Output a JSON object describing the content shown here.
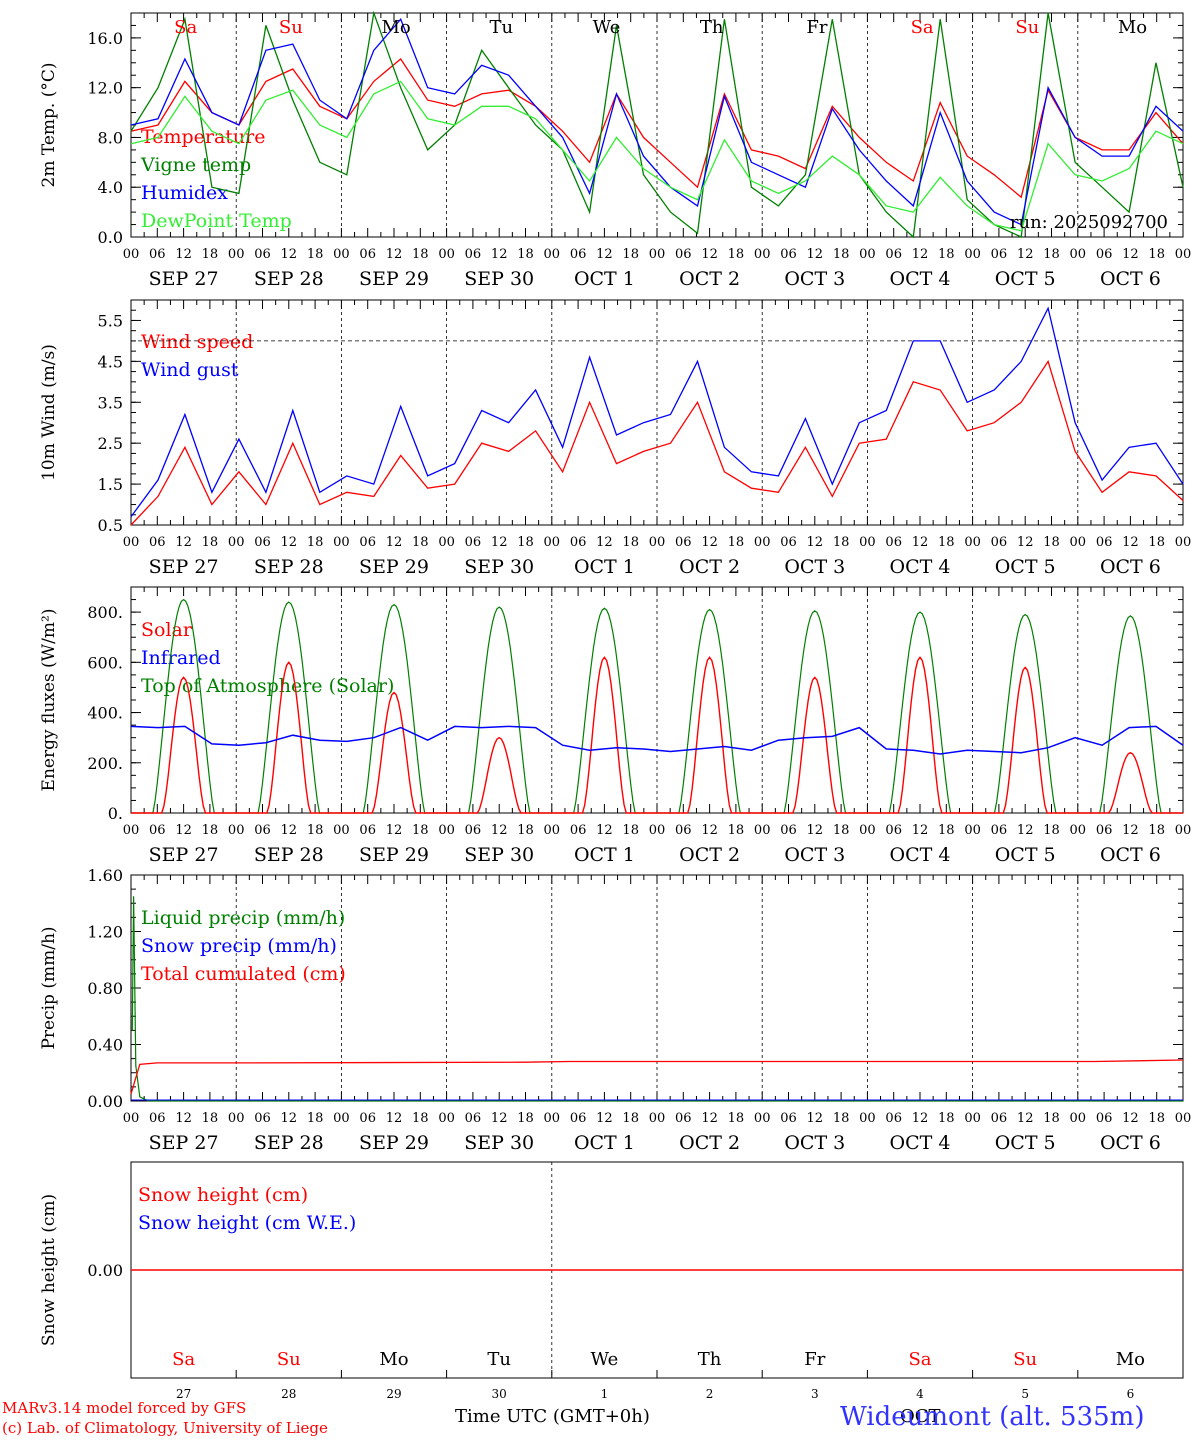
{
  "chart_data": [
    {
      "type": "line",
      "ylabel": "2m Temp. (°C)",
      "ylim": [
        0,
        18
      ],
      "yticks": [
        "0.0",
        "4.0",
        "8.0",
        "12.0",
        "16.0"
      ],
      "ytick_values": [
        0,
        4,
        8,
        12,
        16
      ],
      "run_label": "run: 2025092700",
      "legend": [
        {
          "label": "Temperature",
          "color": "#ff0000"
        },
        {
          "label": "Vigne temp",
          "color": "#008000"
        },
        {
          "label": "Humidex",
          "color": "#0000ff"
        },
        {
          "label": "DewPoint Temp",
          "color": "#33ee33"
        }
      ],
      "series": [
        {
          "name": "Temperature",
          "color": "#ff0000",
          "values": [
            8.5,
            9.0,
            12.5,
            10.0,
            9.0,
            12.5,
            13.5,
            10.5,
            9.5,
            12.5,
            14.3,
            11.0,
            10.5,
            11.5,
            11.8,
            10.5,
            8.5,
            6.0,
            11.5,
            8.0,
            6.0,
            4.0,
            11.5,
            7.0,
            6.5,
            5.5,
            10.5,
            8.0,
            6.0,
            4.5,
            10.8,
            6.5,
            5.0,
            3.2,
            11.8,
            8.0,
            7.0,
            7.0,
            10.0,
            7.5
          ]
        },
        {
          "name": "Vigne temp",
          "color": "#008000",
          "values": [
            8.5,
            12.0,
            17.5,
            4.0,
            3.5,
            17.0,
            11.0,
            6.0,
            5.0,
            18.0,
            12.0,
            7.0,
            9.0,
            15.0,
            12.0,
            9.0,
            7.0,
            2.0,
            17.0,
            5.0,
            2.0,
            0.3,
            17.5,
            4.0,
            2.5,
            5.0,
            17.5,
            5.0,
            2.0,
            0.0,
            17.5,
            3.0,
            1.0,
            0.0,
            18.0,
            6.0,
            4.0,
            2.0,
            14.0,
            4.0
          ]
        },
        {
          "name": "Humidex",
          "color": "#0000ff",
          "values": [
            9.0,
            9.5,
            14.3,
            10.0,
            9.0,
            15.0,
            15.5,
            11.0,
            9.5,
            15.0,
            17.5,
            12.0,
            11.5,
            13.8,
            13.0,
            10.5,
            8.0,
            3.5,
            11.5,
            6.5,
            4.0,
            2.5,
            11.3,
            6.0,
            5.0,
            4.0,
            10.3,
            7.0,
            4.5,
            2.5,
            10.0,
            4.5,
            2.0,
            1.0,
            12.0,
            8.0,
            6.5,
            6.5,
            10.5,
            8.5
          ]
        },
        {
          "name": "DewPoint Temp",
          "color": "#33ee33",
          "values": [
            7.5,
            8.0,
            11.3,
            8.5,
            7.5,
            11.0,
            11.8,
            9.0,
            8.0,
            11.5,
            12.5,
            9.5,
            9.0,
            10.5,
            10.5,
            9.5,
            7.0,
            4.5,
            8.0,
            5.5,
            4.0,
            3.0,
            7.8,
            4.5,
            3.5,
            4.5,
            6.5,
            5.0,
            2.5,
            2.0,
            4.8,
            2.5,
            1.0,
            0.5,
            7.5,
            5.0,
            4.5,
            5.5,
            8.5,
            7.5
          ]
        }
      ]
    },
    {
      "type": "line",
      "ylabel": "10m Wind (m/s)",
      "ylim": [
        0.5,
        6.0
      ],
      "yticks": [
        "0.5",
        "1.5",
        "2.5",
        "3.5",
        "4.5",
        "5.5"
      ],
      "ytick_values": [
        0.5,
        1.5,
        2.5,
        3.5,
        4.5,
        5.5
      ],
      "reference_line": 5.0,
      "legend": [
        {
          "label": "Wind speed",
          "color": "#ff0000"
        },
        {
          "label": "Wind gust",
          "color": "#0000ff"
        }
      ],
      "series": [
        {
          "name": "Wind speed",
          "color": "#ff0000",
          "values": [
            0.5,
            1.2,
            2.4,
            1.0,
            1.8,
            1.0,
            2.5,
            1.0,
            1.3,
            1.2,
            2.2,
            1.4,
            1.5,
            2.5,
            2.3,
            2.8,
            1.8,
            3.5,
            2.0,
            2.3,
            2.5,
            3.5,
            1.8,
            1.4,
            1.3,
            2.4,
            1.2,
            2.5,
            2.6,
            4.0,
            3.8,
            2.8,
            3.0,
            3.5,
            4.5,
            2.3,
            1.3,
            1.8,
            1.7,
            1.1
          ]
        },
        {
          "name": "Wind gust",
          "color": "#0000ff",
          "values": [
            0.7,
            1.6,
            3.2,
            1.3,
            2.6,
            1.3,
            3.3,
            1.3,
            1.7,
            1.5,
            3.4,
            1.7,
            2.0,
            3.3,
            3.0,
            3.8,
            2.4,
            4.6,
            2.7,
            3.0,
            3.2,
            4.5,
            2.4,
            1.8,
            1.7,
            3.1,
            1.5,
            3.0,
            3.3,
            5.0,
            5.0,
            3.5,
            3.8,
            4.5,
            5.8,
            3.0,
            1.6,
            2.4,
            2.5,
            1.5
          ]
        }
      ]
    },
    {
      "type": "line",
      "ylabel": "Energy fluxes (W/m²)",
      "ylim": [
        0,
        900
      ],
      "yticks": [
        "0.",
        "200.",
        "400.",
        "600.",
        "800."
      ],
      "ytick_values": [
        0,
        200,
        400,
        600,
        800
      ],
      "legend": [
        {
          "label": "Solar",
          "color": "#ff0000"
        },
        {
          "label": "Infrared",
          "color": "#0000ff"
        },
        {
          "label": "Top of Atmosphere (Solar)",
          "color": "#008000"
        }
      ],
      "daily_solar_peak": [
        540,
        600,
        480,
        300,
        620,
        620,
        540,
        620,
        580,
        240
      ],
      "daily_toa_peak": [
        850,
        840,
        830,
        820,
        815,
        810,
        805,
        800,
        790,
        785
      ],
      "series": [
        {
          "name": "Infrared",
          "color": "#0000ff",
          "values": [
            345,
            340,
            345,
            275,
            270,
            280,
            310,
            290,
            285,
            300,
            340,
            290,
            345,
            340,
            345,
            340,
            270,
            250,
            260,
            255,
            245,
            255,
            265,
            250,
            290,
            300,
            305,
            340,
            255,
            250,
            235,
            250,
            245,
            240,
            260,
            300,
            270,
            340,
            345,
            270
          ]
        }
      ]
    },
    {
      "type": "line",
      "ylabel": "Precip (mm/h)",
      "ylim": [
        0,
        1.6
      ],
      "yticks": [
        "0.00",
        "0.40",
        "0.80",
        "1.20",
        "1.60"
      ],
      "ytick_values": [
        0,
        0.4,
        0.8,
        1.2,
        1.6
      ],
      "legend": [
        {
          "label": "Liquid precip (mm/h)",
          "color": "#008000"
        },
        {
          "label": "Snow precip (mm/h)",
          "color": "#0000ff"
        },
        {
          "label": "Total cumulated (cm)",
          "color": "#ff0000"
        }
      ],
      "liquid_spike": [
        0.5,
        1.45,
        0.25,
        0.03
      ],
      "total_cumulated_start": 0.05,
      "total_cumulated_end": 0.29
    },
    {
      "type": "line",
      "ylabel": "Snow height (cm)",
      "ylim": [
        -1,
        1
      ],
      "yticks": [
        "0.00"
      ],
      "ytick_values": [
        0
      ],
      "legend": [
        {
          "label": "Snow height (cm)",
          "color": "#ff0000"
        },
        {
          "label": "Snow height (cm W.E.)",
          "color": "#0000ff"
        }
      ]
    }
  ],
  "days": [
    {
      "abbr": "Sa",
      "date": "SEP 27",
      "num": "27",
      "weekend": true
    },
    {
      "abbr": "Su",
      "date": "SEP 28",
      "num": "28",
      "weekend": true
    },
    {
      "abbr": "Mo",
      "date": "SEP 29",
      "num": "29",
      "weekend": false
    },
    {
      "abbr": "Tu",
      "date": "SEP 30",
      "num": "30",
      "weekend": false
    },
    {
      "abbr": "We",
      "date": "OCT  1",
      "num": "1",
      "weekend": false
    },
    {
      "abbr": "Th",
      "date": "OCT  2",
      "num": "2",
      "weekend": false
    },
    {
      "abbr": "Fr",
      "date": "OCT  3",
      "num": "3",
      "weekend": false
    },
    {
      "abbr": "Sa",
      "date": "OCT  4",
      "num": "4",
      "weekend": true
    },
    {
      "abbr": "Su",
      "date": "OCT  5",
      "num": "5",
      "weekend": true
    },
    {
      "abbr": "Mo",
      "date": "OCT  6",
      "num": "6",
      "weekend": false
    }
  ],
  "hour_labels": [
    "00",
    "06",
    "12",
    "18"
  ],
  "final_hour_label": "00",
  "colors": {
    "weekend": "#ff0000",
    "weekday": "#000000",
    "axis": "#000000",
    "grid": "#000000"
  },
  "footer": {
    "model_line": "MARv3.14 model forced by GFS",
    "lab_line": "(c) Lab. of Climatology, University of Liege",
    "xlabel": "Time UTC (GMT+0h)",
    "month_label": "OCT",
    "station": "Wideumont (alt. 535m)"
  }
}
